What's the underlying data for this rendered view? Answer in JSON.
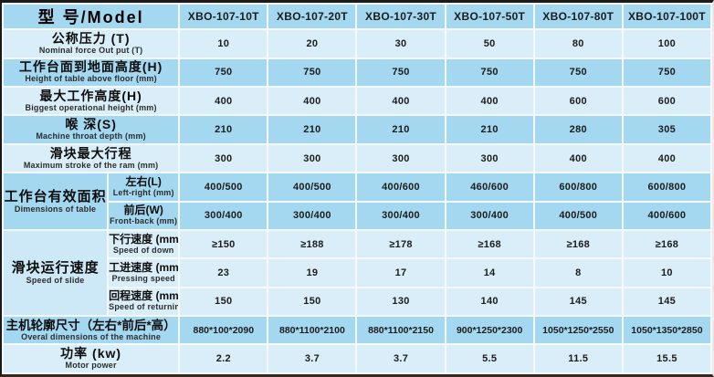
{
  "chart_data": {
    "type": "table",
    "title": "型 号/Model",
    "models": [
      "XBO-107-10T",
      "XBO-107-20T",
      "XBO-107-30T",
      "XBO-107-50T",
      "XBO-107-80T",
      "XBO-107-100T"
    ],
    "rows_top": [
      {
        "zh": "公称压力 (T)",
        "en": "Nominal force Out put (T)",
        "values": [
          "10",
          "20",
          "30",
          "50",
          "80",
          "100"
        ]
      },
      {
        "zh": "工作台面到地面高度(H)",
        "en": "Height of table above floor (mm)",
        "values": [
          "750",
          "750",
          "750",
          "750",
          "750",
          "750"
        ]
      },
      {
        "zh": "最大工作高度(H)",
        "en": "Biggest operational height (mm)",
        "values": [
          "400",
          "400",
          "400",
          "400",
          "600",
          "600"
        ]
      },
      {
        "zh": "喉 深(S)",
        "en": "Machine throat depth (mm)",
        "values": [
          "210",
          "210",
          "210",
          "210",
          "280",
          "305"
        ]
      },
      {
        "zh": "滑块最大行程",
        "en": "Maximum stroke of the ram (mm)",
        "values": [
          "300",
          "300",
          "300",
          "300",
          "400",
          "400"
        ]
      }
    ],
    "table_group": {
      "zh": "工作台有效面积",
      "en": "Dimensions of table",
      "subrows": [
        {
          "zh": "左右(L)",
          "en": "Left-right (mm)",
          "values": [
            "400/500",
            "400/500",
            "400/600",
            "460/600",
            "600/800",
            "600/800"
          ]
        },
        {
          "zh": "前后(W)",
          "en": "Front-back (mm)",
          "values": [
            "300/400",
            "300/400",
            "300/400",
            "300/400",
            "400/500",
            "400/600"
          ]
        }
      ]
    },
    "speed_group": {
      "zh": "滑块运行速度",
      "en": "Speed of slide",
      "subrows": [
        {
          "zh": "下行速度 (mm/s)",
          "en": "Speed of down",
          "values": [
            "≥150",
            "≥188",
            "≥178",
            "≥168",
            "≥168",
            "≥168"
          ]
        },
        {
          "zh": "工进速度 (mm/s)",
          "en": "Pressing speed",
          "values": [
            "23",
            "19",
            "17",
            "14",
            "8",
            "10"
          ]
        },
        {
          "zh": "回程速度 (mm/s)",
          "en": "Speed of returning",
          "values": [
            "150",
            "150",
            "130",
            "140",
            "145",
            "145"
          ]
        }
      ]
    },
    "rows_bottom": [
      {
        "zh": "主机轮廓尺寸（左右*前后*高）",
        "en": "Overal dimensions of the machine",
        "values": [
          "880*100*2090",
          "880*1100*2100",
          "880*1100*2150",
          "900*1250*2300",
          "1050*1250*2550",
          "1050*1350*2850"
        ]
      },
      {
        "zh": "功率 (kw)",
        "en": "Motor power",
        "values": [
          "2.2",
          "3.7",
          "3.7",
          "5.5",
          "11.5",
          "15.5"
        ]
      }
    ],
    "colors": {
      "row_medium": "#a4d8f1",
      "row_light": "#d9eef9",
      "grid_line": "#f4f9fd",
      "border_dark": "#1a1a1a",
      "text": "#1b1b1b"
    }
  }
}
